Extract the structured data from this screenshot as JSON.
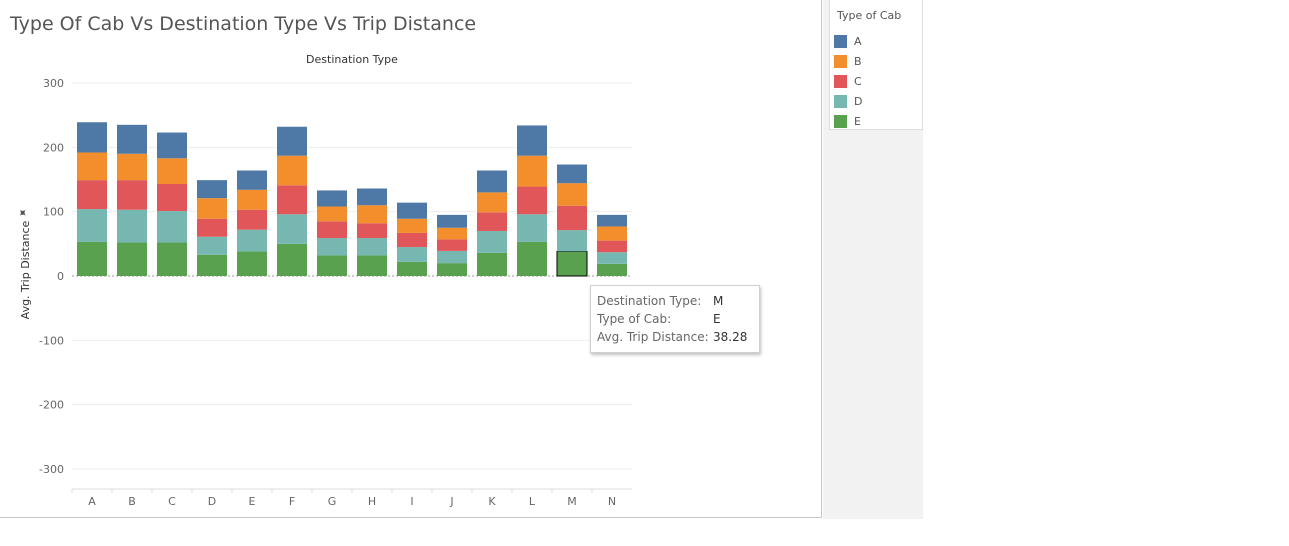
{
  "title": "Type Of Cab Vs Destination Type Vs Trip Distance",
  "legend": {
    "title": "Type of Cab",
    "items": [
      {
        "label": "A",
        "color": "#4e79a7"
      },
      {
        "label": "B",
        "color": "#f28e2b"
      },
      {
        "label": "C",
        "color": "#e15759"
      },
      {
        "label": "D",
        "color": "#76b7b2"
      },
      {
        "label": "E",
        "color": "#59a14f"
      }
    ]
  },
  "tooltip": {
    "rows": [
      {
        "label": "Destination Type:",
        "value": "M"
      },
      {
        "label": "Type of Cab:",
        "value": "E"
      },
      {
        "label": "Avg. Trip Distance:",
        "value": "38.28"
      }
    ]
  },
  "chart_data": {
    "type": "bar",
    "stacked": true,
    "title": "Type Of Cab Vs Destination Type Vs Trip Distance",
    "column_header": "Destination Type",
    "xlabel": "",
    "ylabel": "Avg. Trip Distance",
    "ylim": [
      -320,
      310
    ],
    "yticks": [
      300,
      200,
      100,
      0,
      -100,
      -200,
      -300
    ],
    "grid": true,
    "legend_position": "right",
    "categories": [
      "A",
      "B",
      "C",
      "D",
      "E",
      "F",
      "G",
      "H",
      "I",
      "J",
      "K",
      "L",
      "M",
      "N"
    ],
    "series": [
      {
        "name": "E",
        "color": "#59a14f",
        "values": [
          53,
          52,
          52,
          33,
          38,
          50,
          32,
          32,
          22,
          20,
          36,
          53,
          38.28,
          19
        ]
      },
      {
        "name": "D",
        "color": "#76b7b2",
        "values": [
          51,
          51,
          49,
          28,
          34,
          46,
          27,
          27,
          23,
          19,
          34,
          43,
          33,
          18
        ]
      },
      {
        "name": "C",
        "color": "#e15759",
        "values": [
          45,
          46,
          42,
          28,
          31,
          45,
          26,
          23,
          22,
          18,
          29,
          43,
          38,
          18
        ]
      },
      {
        "name": "B",
        "color": "#f28e2b",
        "values": [
          43,
          41,
          40,
          32,
          31,
          46,
          23,
          28,
          22,
          18,
          31,
          48,
          35,
          22
        ]
      },
      {
        "name": "A",
        "color": "#4e79a7",
        "values": [
          47,
          45,
          40,
          28,
          30,
          45,
          25,
          26,
          25,
          20,
          34,
          47,
          29,
          18
        ]
      }
    ],
    "highlight": {
      "category": "M",
      "series": "E"
    }
  }
}
